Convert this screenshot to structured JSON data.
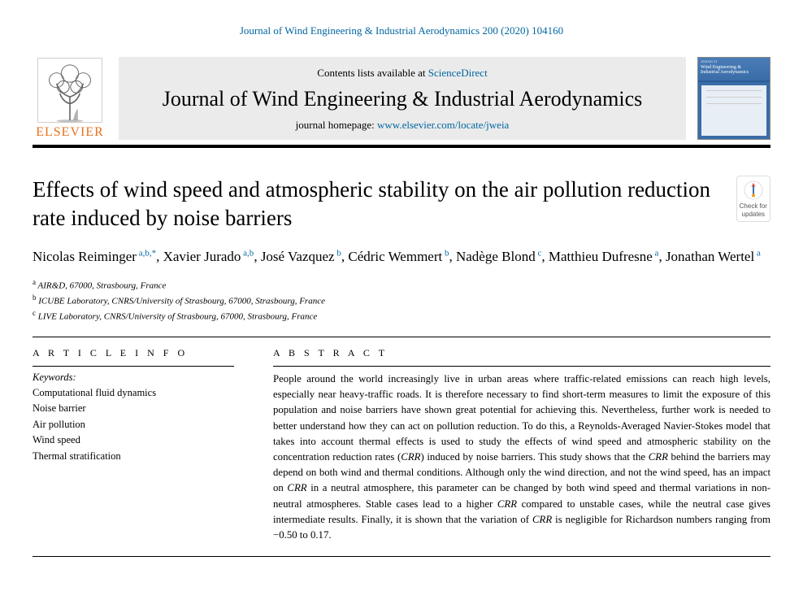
{
  "citation": {
    "journal": "Journal of Wind Engineering & Industrial Aerodynamics",
    "volume": "200",
    "year": "2020",
    "article_id": "104160"
  },
  "masthead": {
    "contents_prefix": "Contents lists available at ",
    "contents_link": "ScienceDirect",
    "journal_name": "Journal of Wind Engineering & Industrial Aerodynamics",
    "homepage_prefix": "journal homepage: ",
    "homepage_url": "www.elsevier.com/locate/jweia",
    "publisher": "ELSEVIER",
    "cover_title_line1": "Wind Engineering &",
    "cover_title_line2": "Industrial Aerodynamics"
  },
  "update_badge": {
    "line1": "Check for",
    "line2": "updates"
  },
  "article": {
    "title": "Effects of wind speed and atmospheric stability on the air pollution reduction rate induced by noise barriers",
    "authors": [
      {
        "name": "Nicolas Reiminger",
        "affil": "a,b,*"
      },
      {
        "name": "Xavier Jurado",
        "affil": "a,b"
      },
      {
        "name": "José Vazquez",
        "affil": "b"
      },
      {
        "name": "Cédric Wemmert",
        "affil": "b"
      },
      {
        "name": "Nadège Blond",
        "affil": "c"
      },
      {
        "name": "Matthieu Dufresne",
        "affil": "a"
      },
      {
        "name": "Jonathan Wertel",
        "affil": "a"
      }
    ],
    "affiliations": [
      {
        "key": "a",
        "text": "AIR&D, 67000, Strasbourg, France"
      },
      {
        "key": "b",
        "text": "ICUBE Laboratory, CNRS/University of Strasbourg, 67000, Strasbourg, France"
      },
      {
        "key": "c",
        "text": "LIVE Laboratory, CNRS/University of Strasbourg, 67000, Strasbourg, France"
      }
    ]
  },
  "info": {
    "heading": "A R T I C L E  I N F O",
    "keywords_label": "Keywords:",
    "keywords": [
      "Computational fluid dynamics",
      "Noise barrier",
      "Air pollution",
      "Wind speed",
      "Thermal stratification"
    ]
  },
  "abstract": {
    "heading": "A B S T R A C T",
    "text": "People around the world increasingly live in urban areas where traffic-related emissions can reach high levels, especially near heavy-traffic roads. It is therefore necessary to find short-term measures to limit the exposure of this population and noise barriers have shown great potential for achieving this. Nevertheless, further work is needed to better understand how they can act on pollution reduction. To do this, a Reynolds-Averaged Navier-Stokes model that takes into account thermal effects is used to study the effects of wind speed and atmospheric stability on the concentration reduction rates (CRR) induced by noise barriers. This study shows that the CRR behind the barriers may depend on both wind and thermal conditions. Although only the wind direction, and not the wind speed, has an impact on CRR in a neutral atmosphere, this parameter can be changed by both wind speed and thermal variations in non-neutral atmospheres. Stable cases lead to a higher CRR compared to unstable cases, while the neutral case gives intermediate results. Finally, it is shown that the variation of CRR is negligible for Richardson numbers ranging from −0.50 to 0.17."
  },
  "colors": {
    "link": "#0066a1",
    "orange": "#e9711c",
    "box_bg": "#ebebeb",
    "cover_blue": "#3a6da8"
  }
}
